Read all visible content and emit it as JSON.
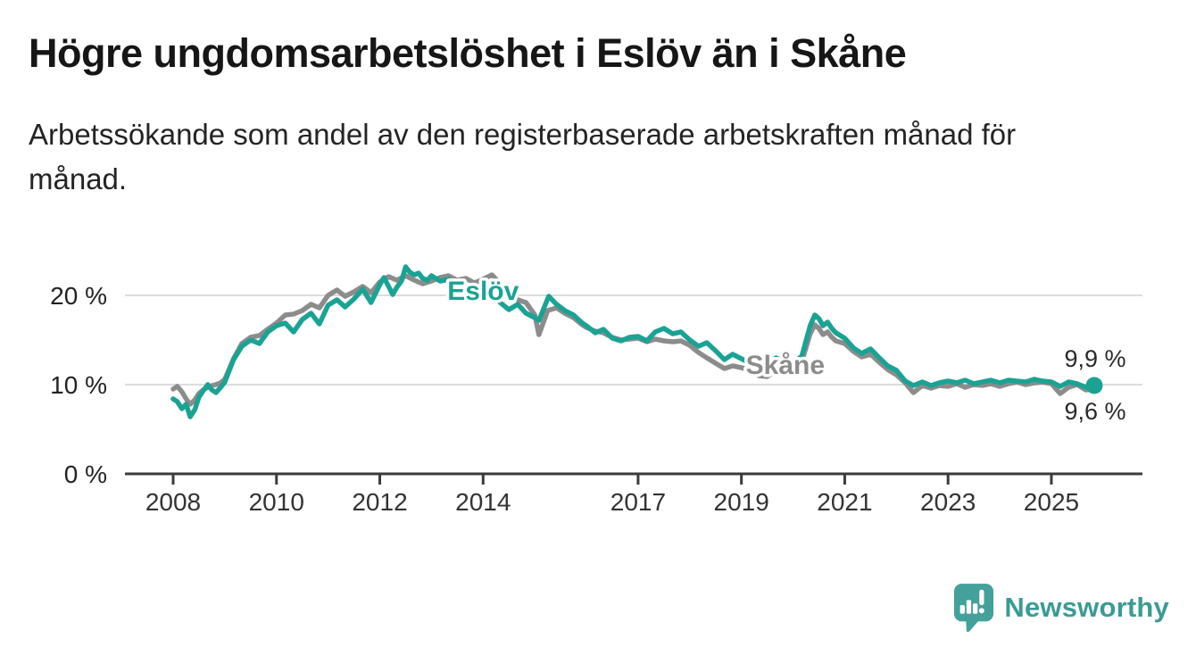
{
  "header": {
    "title": "Högre ungdomsarbetslöshet i Eslöv än i Skåne",
    "subtitle_lines": [
      "Arbetssökande som andel av den registerbaserade arbetskraften månad för",
      "månad."
    ]
  },
  "chart_data": {
    "type": "line",
    "unit": "%",
    "grid": true,
    "xlim": [
      2008,
      2026.1
    ],
    "ylim": [
      0,
      25
    ],
    "x_ticks": [
      2008,
      2010,
      2012,
      2014,
      2017,
      2019,
      2021,
      2023,
      2025
    ],
    "y_ticks": [
      {
        "value": 0,
        "label": "0 %"
      },
      {
        "value": 10,
        "label": "10 %"
      },
      {
        "value": 20,
        "label": "20 %"
      }
    ],
    "colors": {
      "eslov": "#1aa394",
      "skane": "#8c8c8c",
      "grid": "#dcdcdc",
      "axis": "#3b3b3b",
      "tick_text": "#333333",
      "value_text": "#2a2a2a"
    },
    "series": [
      {
        "name": "Eslöv",
        "color": "#1aa394",
        "inline_label": {
          "text": "Eslöv",
          "x": 2014.0,
          "y": 20.5
        },
        "end_label": "9,9 %",
        "end_label_side": "above",
        "end_value": 9.9,
        "end_dot": true,
        "points": [
          [
            2008.0,
            8.4
          ],
          [
            2008.08,
            8.1
          ],
          [
            2008.17,
            7.3
          ],
          [
            2008.25,
            7.8
          ],
          [
            2008.33,
            6.4
          ],
          [
            2008.42,
            7.2
          ],
          [
            2008.5,
            8.6
          ],
          [
            2008.58,
            9.3
          ],
          [
            2008.67,
            10.0
          ],
          [
            2008.75,
            9.4
          ],
          [
            2008.83,
            9.1
          ],
          [
            2008.92,
            9.7
          ],
          [
            2009.0,
            10.3
          ],
          [
            2009.17,
            12.8
          ],
          [
            2009.33,
            14.3
          ],
          [
            2009.5,
            15.0
          ],
          [
            2009.67,
            14.6
          ],
          [
            2009.83,
            15.9
          ],
          [
            2010.0,
            16.6
          ],
          [
            2010.17,
            16.9
          ],
          [
            2010.33,
            15.9
          ],
          [
            2010.5,
            17.3
          ],
          [
            2010.67,
            18.0
          ],
          [
            2010.83,
            16.8
          ],
          [
            2011.0,
            18.9
          ],
          [
            2011.17,
            19.5
          ],
          [
            2011.33,
            18.7
          ],
          [
            2011.5,
            19.6
          ],
          [
            2011.67,
            20.7
          ],
          [
            2011.83,
            19.2
          ],
          [
            2012.0,
            21.2
          ],
          [
            2012.08,
            22.0
          ],
          [
            2012.17,
            21.0
          ],
          [
            2012.25,
            20.1
          ],
          [
            2012.33,
            20.9
          ],
          [
            2012.42,
            21.6
          ],
          [
            2012.5,
            23.2
          ],
          [
            2012.58,
            22.6
          ],
          [
            2012.67,
            22.3
          ],
          [
            2012.75,
            22.5
          ],
          [
            2012.83,
            21.9
          ],
          [
            2012.92,
            21.7
          ],
          [
            2013.0,
            22.2
          ],
          [
            2013.17,
            21.6
          ],
          [
            2013.33,
            21.8
          ],
          [
            2013.5,
            21.2
          ],
          [
            2013.67,
            20.8
          ],
          [
            2013.83,
            20.1
          ],
          [
            2014.0,
            19.8
          ],
          [
            2014.17,
            20.2
          ],
          [
            2014.33,
            19.2
          ],
          [
            2014.5,
            18.4
          ],
          [
            2014.67,
            19.0
          ],
          [
            2014.83,
            18.0
          ],
          [
            2015.0,
            17.5
          ],
          [
            2015.08,
            17.2
          ],
          [
            2015.27,
            19.9
          ],
          [
            2015.42,
            19.0
          ],
          [
            2015.58,
            18.3
          ],
          [
            2015.75,
            17.8
          ],
          [
            2015.92,
            16.9
          ],
          [
            2016.0,
            16.6
          ],
          [
            2016.17,
            15.8
          ],
          [
            2016.33,
            16.2
          ],
          [
            2016.5,
            15.2
          ],
          [
            2016.67,
            14.9
          ],
          [
            2016.83,
            15.3
          ],
          [
            2017.0,
            15.4
          ],
          [
            2017.17,
            14.9
          ],
          [
            2017.33,
            15.9
          ],
          [
            2017.5,
            16.3
          ],
          [
            2017.67,
            15.7
          ],
          [
            2017.83,
            15.9
          ],
          [
            2018.0,
            15.0
          ],
          [
            2018.17,
            14.3
          ],
          [
            2018.33,
            14.7
          ],
          [
            2018.5,
            13.8
          ],
          [
            2018.67,
            12.8
          ],
          [
            2018.83,
            13.4
          ],
          [
            2019.0,
            12.9
          ],
          [
            2019.17,
            12.4
          ],
          [
            2019.33,
            12.8
          ],
          [
            2019.5,
            12.3
          ],
          [
            2019.67,
            13.0
          ],
          [
            2019.83,
            12.6
          ],
          [
            2020.0,
            12.4
          ],
          [
            2020.17,
            13.2
          ],
          [
            2020.33,
            16.6
          ],
          [
            2020.42,
            17.8
          ],
          [
            2020.5,
            17.4
          ],
          [
            2020.58,
            16.6
          ],
          [
            2020.67,
            17.0
          ],
          [
            2020.75,
            16.3
          ],
          [
            2020.83,
            15.8
          ],
          [
            2021.0,
            15.2
          ],
          [
            2021.17,
            14.1
          ],
          [
            2021.33,
            13.5
          ],
          [
            2021.5,
            14.0
          ],
          [
            2021.67,
            13.0
          ],
          [
            2021.83,
            12.1
          ],
          [
            2022.0,
            11.6
          ],
          [
            2022.17,
            10.4
          ],
          [
            2022.33,
            9.9
          ],
          [
            2022.5,
            10.3
          ],
          [
            2022.67,
            9.9
          ],
          [
            2022.83,
            10.2
          ],
          [
            2023.0,
            10.4
          ],
          [
            2023.17,
            10.2
          ],
          [
            2023.33,
            10.5
          ],
          [
            2023.5,
            10.1
          ],
          [
            2023.67,
            10.3
          ],
          [
            2023.83,
            10.5
          ],
          [
            2024.0,
            10.2
          ],
          [
            2024.17,
            10.5
          ],
          [
            2024.33,
            10.4
          ],
          [
            2024.5,
            10.3
          ],
          [
            2024.67,
            10.6
          ],
          [
            2024.83,
            10.4
          ],
          [
            2025.0,
            10.3
          ],
          [
            2025.17,
            9.8
          ],
          [
            2025.33,
            10.3
          ],
          [
            2025.5,
            10.1
          ],
          [
            2025.67,
            9.7
          ],
          [
            2025.83,
            9.9
          ]
        ]
      },
      {
        "name": "Skåne",
        "color": "#8c8c8c",
        "inline_label": {
          "text": "Skåne",
          "x": 2019.85,
          "y": 12.2
        },
        "end_label": "9,6 %",
        "end_label_side": "below",
        "end_value": 9.6,
        "end_dot": false,
        "points": [
          [
            2008.0,
            9.5
          ],
          [
            2008.08,
            9.8
          ],
          [
            2008.17,
            9.2
          ],
          [
            2008.25,
            8.4
          ],
          [
            2008.33,
            7.8
          ],
          [
            2008.42,
            8.3
          ],
          [
            2008.5,
            9.0
          ],
          [
            2008.58,
            9.4
          ],
          [
            2008.67,
            9.7
          ],
          [
            2008.75,
            9.9
          ],
          [
            2008.83,
            10.0
          ],
          [
            2008.92,
            10.2
          ],
          [
            2009.0,
            10.6
          ],
          [
            2009.17,
            12.9
          ],
          [
            2009.33,
            14.6
          ],
          [
            2009.5,
            15.3
          ],
          [
            2009.67,
            15.5
          ],
          [
            2009.83,
            16.2
          ],
          [
            2010.0,
            16.9
          ],
          [
            2010.17,
            17.8
          ],
          [
            2010.33,
            17.9
          ],
          [
            2010.5,
            18.3
          ],
          [
            2010.67,
            19.0
          ],
          [
            2010.83,
            18.6
          ],
          [
            2011.0,
            20.0
          ],
          [
            2011.17,
            20.6
          ],
          [
            2011.33,
            19.9
          ],
          [
            2011.5,
            20.4
          ],
          [
            2011.67,
            21.0
          ],
          [
            2011.83,
            20.3
          ],
          [
            2012.0,
            21.5
          ],
          [
            2012.17,
            22.1
          ],
          [
            2012.33,
            21.7
          ],
          [
            2012.5,
            22.2
          ],
          [
            2012.67,
            21.7
          ],
          [
            2012.83,
            21.3
          ],
          [
            2013.0,
            21.6
          ],
          [
            2013.17,
            22.0
          ],
          [
            2013.33,
            22.2
          ],
          [
            2013.5,
            21.7
          ],
          [
            2013.67,
            21.9
          ],
          [
            2013.83,
            21.4
          ],
          [
            2014.0,
            21.8
          ],
          [
            2014.17,
            22.3
          ],
          [
            2014.33,
            21.3
          ],
          [
            2014.5,
            20.2
          ],
          [
            2014.67,
            19.5
          ],
          [
            2014.83,
            19.2
          ],
          [
            2015.0,
            17.8
          ],
          [
            2015.08,
            15.6
          ],
          [
            2015.25,
            18.3
          ],
          [
            2015.42,
            18.6
          ],
          [
            2015.58,
            18.0
          ],
          [
            2015.75,
            17.5
          ],
          [
            2015.92,
            16.7
          ],
          [
            2016.0,
            16.4
          ],
          [
            2016.17,
            16.0
          ],
          [
            2016.33,
            15.8
          ],
          [
            2016.5,
            15.3
          ],
          [
            2016.67,
            15.0
          ],
          [
            2016.83,
            15.1
          ],
          [
            2017.0,
            15.2
          ],
          [
            2017.17,
            14.8
          ],
          [
            2017.33,
            15.1
          ],
          [
            2017.5,
            14.9
          ],
          [
            2017.67,
            14.8
          ],
          [
            2017.83,
            14.9
          ],
          [
            2018.0,
            14.4
          ],
          [
            2018.17,
            13.6
          ],
          [
            2018.33,
            13.0
          ],
          [
            2018.5,
            12.4
          ],
          [
            2018.67,
            11.8
          ],
          [
            2018.83,
            12.1
          ],
          [
            2019.0,
            11.9
          ],
          [
            2019.17,
            11.6
          ],
          [
            2019.33,
            11.0
          ],
          [
            2019.5,
            10.9
          ],
          [
            2019.67,
            11.6
          ],
          [
            2019.83,
            11.4
          ],
          [
            2020.0,
            11.8
          ],
          [
            2020.17,
            12.6
          ],
          [
            2020.33,
            15.7
          ],
          [
            2020.42,
            16.7
          ],
          [
            2020.5,
            16.3
          ],
          [
            2020.58,
            15.6
          ],
          [
            2020.67,
            15.9
          ],
          [
            2020.75,
            15.3
          ],
          [
            2020.83,
            14.9
          ],
          [
            2021.0,
            14.6
          ],
          [
            2021.17,
            13.7
          ],
          [
            2021.33,
            13.1
          ],
          [
            2021.5,
            13.4
          ],
          [
            2021.67,
            12.5
          ],
          [
            2021.83,
            11.7
          ],
          [
            2022.0,
            11.1
          ],
          [
            2022.17,
            10.2
          ],
          [
            2022.33,
            9.1
          ],
          [
            2022.5,
            9.9
          ],
          [
            2022.67,
            9.6
          ],
          [
            2022.83,
            9.9
          ],
          [
            2023.0,
            9.8
          ],
          [
            2023.17,
            10.1
          ],
          [
            2023.33,
            9.7
          ],
          [
            2023.5,
            10.0
          ],
          [
            2023.67,
            9.9
          ],
          [
            2023.83,
            10.1
          ],
          [
            2024.0,
            9.8
          ],
          [
            2024.17,
            10.1
          ],
          [
            2024.33,
            10.3
          ],
          [
            2024.5,
            10.0
          ],
          [
            2024.67,
            10.2
          ],
          [
            2024.83,
            10.3
          ],
          [
            2025.0,
            10.1
          ],
          [
            2025.17,
            9.0
          ],
          [
            2025.33,
            9.7
          ],
          [
            2025.5,
            10.0
          ],
          [
            2025.67,
            9.4
          ],
          [
            2025.83,
            9.6
          ]
        ]
      }
    ]
  },
  "footer": {
    "brand": "Newsworthy",
    "logo_icon": "bar-chart-speech-bubble-icon",
    "brand_color": "#3b9b94",
    "icon_color": "#43a09a"
  }
}
